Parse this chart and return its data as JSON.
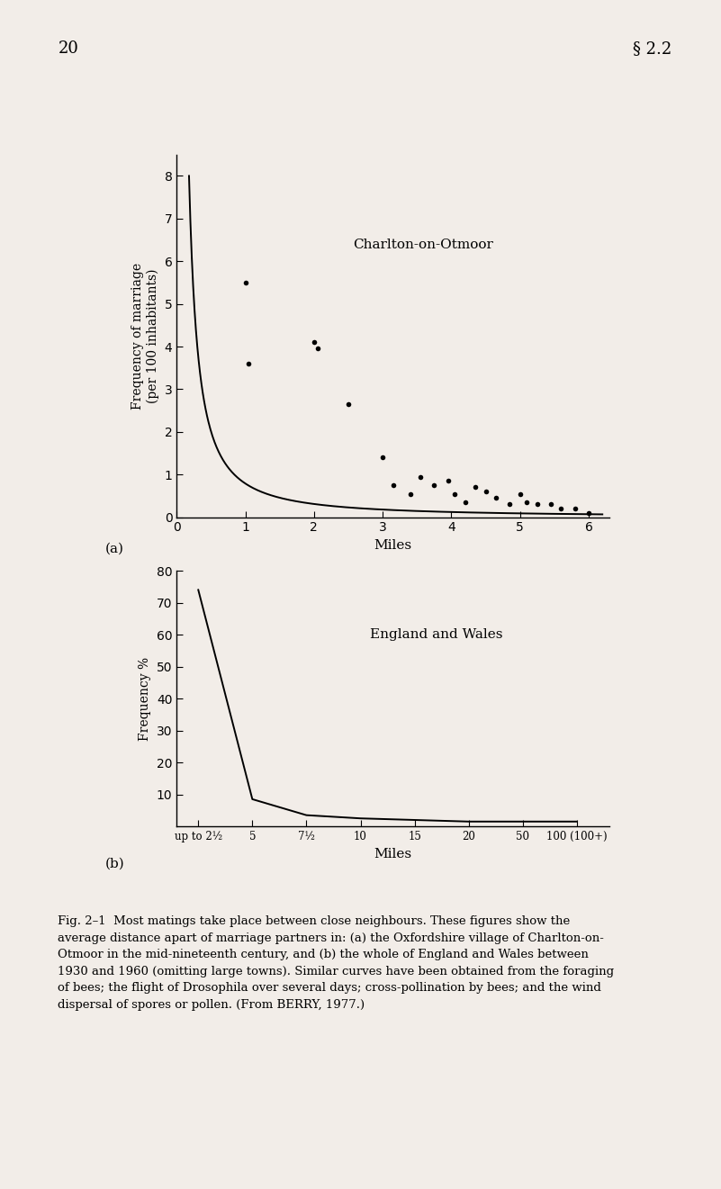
{
  "background_color": "#f2ede8",
  "page_number": "20",
  "section_number": "§ 2.2",
  "plot_a": {
    "title": "Charlton-on-Otmoor",
    "xlabel": "Miles",
    "ylabel": "Frequency of marriage\n(per 100 inhabitants)",
    "xlim": [
      0,
      6.3
    ],
    "ylim": [
      0,
      8.5
    ],
    "yticks": [
      0,
      1,
      2,
      3,
      4,
      5,
      6,
      7,
      8
    ],
    "xticks": [
      0,
      1,
      2,
      3,
      4,
      5,
      6
    ],
    "label": "(a)",
    "scatter_x": [
      1.0,
      1.05,
      2.0,
      2.05,
      2.5,
      3.0,
      3.15,
      3.4,
      3.55,
      3.75,
      3.95,
      4.05,
      4.2,
      4.35,
      4.5,
      4.65,
      4.85,
      5.0,
      5.1,
      5.25,
      5.45,
      5.6,
      5.8,
      6.0
    ],
    "scatter_y": [
      5.5,
      3.6,
      4.1,
      3.95,
      2.65,
      1.4,
      0.75,
      0.55,
      0.95,
      0.75,
      0.85,
      0.55,
      0.35,
      0.7,
      0.6,
      0.45,
      0.3,
      0.55,
      0.35,
      0.3,
      0.3,
      0.2,
      0.2,
      0.1
    ]
  },
  "plot_b": {
    "title": "England and Wales",
    "xlabel": "Miles",
    "ylabel": "Frequency %",
    "label": "(b)",
    "ylim": [
      0,
      80
    ],
    "yticks": [
      10,
      20,
      30,
      40,
      50,
      60,
      70,
      80
    ],
    "xtick_labels": [
      "up to 2½",
      "5",
      "7½",
      "10",
      "15",
      "20",
      "50",
      "100 (100+)"
    ],
    "xtick_positions": [
      0,
      1,
      2,
      3,
      4,
      5,
      6,
      7
    ],
    "curve_x": [
      0,
      1,
      2,
      3,
      4,
      5,
      6,
      7
    ],
    "curve_y": [
      74,
      8.5,
      3.5,
      2.5,
      2.0,
      1.5,
      1.5,
      1.5
    ]
  },
  "caption_bold": "Fig. 2–1",
  "caption_normal": "  Most matings take place between close neighbours. These figures show the average distance apart of marriage partners in: (a) the Oxfordshire village of Charlton-on-Otmoor in the mid-nineteenth century, and (b) the whole of England and Wales between 1930 and 1960 (omitting large towns). Similar curves have been obtained from the foraging of bees; the flight of ",
  "caption_italic": "Drosophila",
  "caption_end": " over several days; cross-pollination by bees; and the wind dispersal of spores or pollen. (From ʙᴇʀʀʏ, 1977.)"
}
